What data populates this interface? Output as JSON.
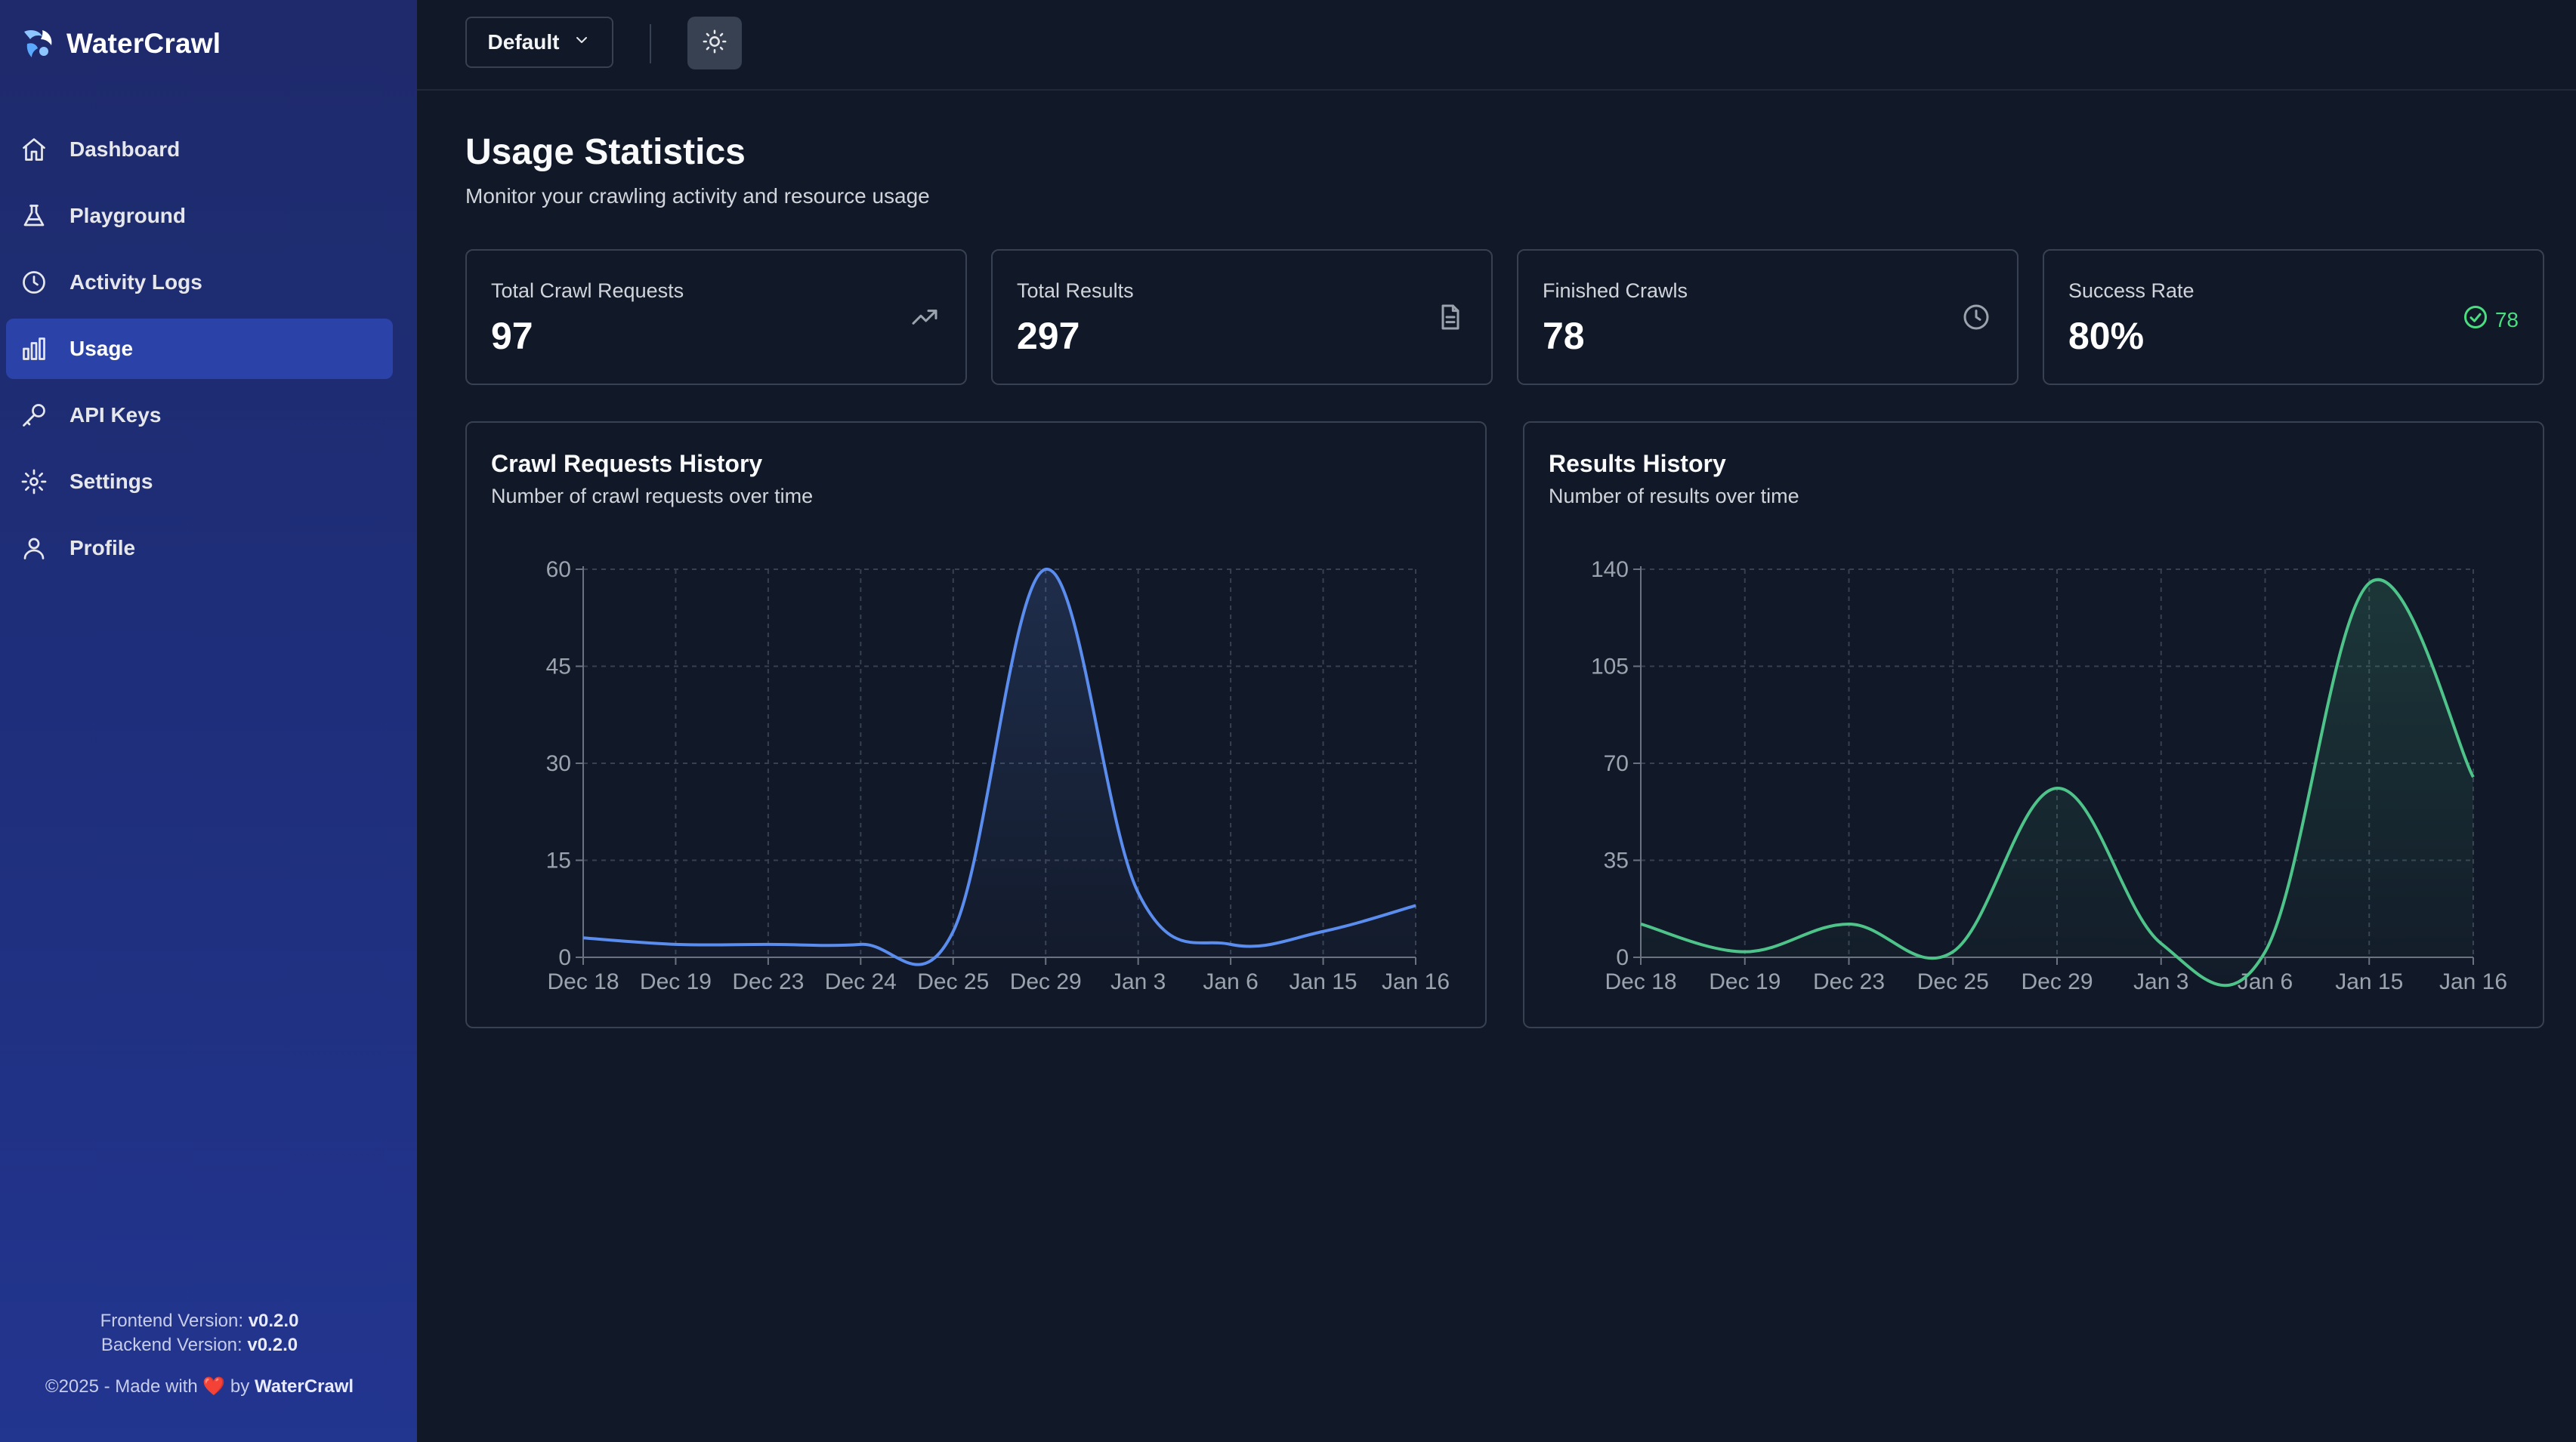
{
  "app": {
    "name": "WaterCrawl"
  },
  "sidebar": {
    "items": [
      {
        "label": "Dashboard",
        "icon": "home-icon"
      },
      {
        "label": "Playground",
        "icon": "flask-icon"
      },
      {
        "label": "Activity Logs",
        "icon": "clock-icon"
      },
      {
        "label": "Usage",
        "icon": "bar-chart-icon",
        "active": true
      },
      {
        "label": "API Keys",
        "icon": "key-icon"
      },
      {
        "label": "Settings",
        "icon": "gear-icon"
      },
      {
        "label": "Profile",
        "icon": "user-icon"
      }
    ],
    "footer": {
      "frontend_label": "Frontend Version:",
      "frontend_version": "v0.2.0",
      "backend_label": "Backend Version:",
      "backend_version": "v0.2.0",
      "copyright_prefix": "©2025 - Made with",
      "copyright_by": "by",
      "copyright_brand": "WaterCrawl"
    }
  },
  "topbar": {
    "select_value": "Default",
    "theme_icon": "sun-icon"
  },
  "page": {
    "title": "Usage Statistics",
    "subtitle": "Monitor your crawling activity and resource usage"
  },
  "stats": [
    {
      "label": "Total Crawl Requests",
      "value": "97",
      "icon": "trending-up-icon"
    },
    {
      "label": "Total Results",
      "value": "297",
      "icon": "file-icon"
    },
    {
      "label": "Finished Crawls",
      "value": "78",
      "icon": "clock-icon"
    },
    {
      "label": "Success Rate",
      "value": "80%",
      "badge": "78",
      "icon": "check-circle-icon"
    }
  ],
  "colors": {
    "crawl_line": "#5b8def",
    "results_line": "#4fc48a",
    "success": "#4ade80",
    "sidebar_active": "#2b43a8"
  },
  "chart_data": [
    {
      "type": "area",
      "title": "Crawl Requests History",
      "subtitle": "Number of crawl requests over time",
      "categories": [
        "Dec 18",
        "Dec 19",
        "Dec 23",
        "Dec 24",
        "Dec 25",
        "Dec 29",
        "Jan 3",
        "Jan 6",
        "Jan 15",
        "Jan 16"
      ],
      "series": [
        {
          "values": [
            3,
            2,
            2,
            2,
            4,
            60,
            10,
            2,
            4,
            8
          ]
        }
      ],
      "yticks": [
        0,
        15,
        30,
        45,
        60
      ],
      "ylim": [
        0,
        60
      ],
      "grid": true,
      "legend": "none"
    },
    {
      "type": "area",
      "title": "Results History",
      "subtitle": "Number of results over time",
      "categories": [
        "Dec 18",
        "Dec 19",
        "Dec 23",
        "Dec 25",
        "Dec 29",
        "Jan 3",
        "Jan 6",
        "Jan 15",
        "Jan 16"
      ],
      "series": [
        {
          "values": [
            12,
            2,
            12,
            2,
            61,
            5,
            2,
            135,
            65
          ]
        }
      ],
      "yticks": [
        0,
        35,
        70,
        105,
        140
      ],
      "ylim": [
        0,
        140
      ],
      "grid": true,
      "legend": "none"
    }
  ]
}
